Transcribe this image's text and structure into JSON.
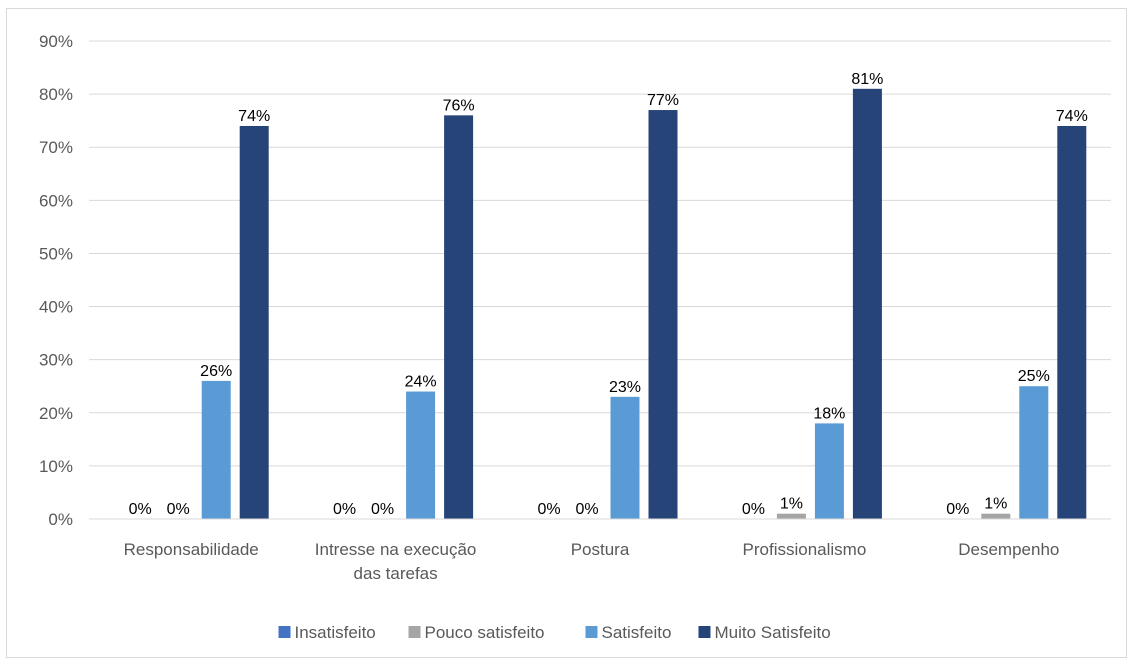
{
  "chart_data": {
    "type": "bar",
    "categories": [
      [
        "Responsabilidade"
      ],
      [
        "Intresse na execução",
        "das tarefas"
      ],
      [
        "Postura"
      ],
      [
        "Profissionalismo"
      ],
      [
        "Desempenho"
      ]
    ],
    "series": [
      {
        "name": "Insatisfeito",
        "color": "#4472c4",
        "values": [
          0,
          0,
          0,
          0,
          0
        ],
        "labels": [
          "0%",
          "0%",
          "0%",
          "0%",
          "0%"
        ]
      },
      {
        "name": "Pouco satisfeito",
        "color": "#a5a5a5",
        "values": [
          0,
          0,
          0,
          1,
          1
        ],
        "labels": [
          "0%",
          "0%",
          "0%",
          "1%",
          "1%"
        ]
      },
      {
        "name": "Satisfeito",
        "color": "#5b9bd5",
        "values": [
          26,
          24,
          23,
          18,
          25
        ],
        "labels": [
          "26%",
          "24%",
          "23%",
          "18%",
          "25%"
        ]
      },
      {
        "name": "Muito Satisfeito",
        "color": "#264478",
        "values": [
          74,
          76,
          77,
          81,
          74
        ],
        "labels": [
          "74%",
          "76%",
          "77%",
          "81%",
          "74%"
        ]
      }
    ],
    "yticks": [
      "0%",
      "10%",
      "20%",
      "30%",
      "40%",
      "50%",
      "60%",
      "70%",
      "80%",
      "90%"
    ],
    "ylim": [
      0,
      90
    ],
    "grid": true,
    "legend_position": "bottom"
  }
}
